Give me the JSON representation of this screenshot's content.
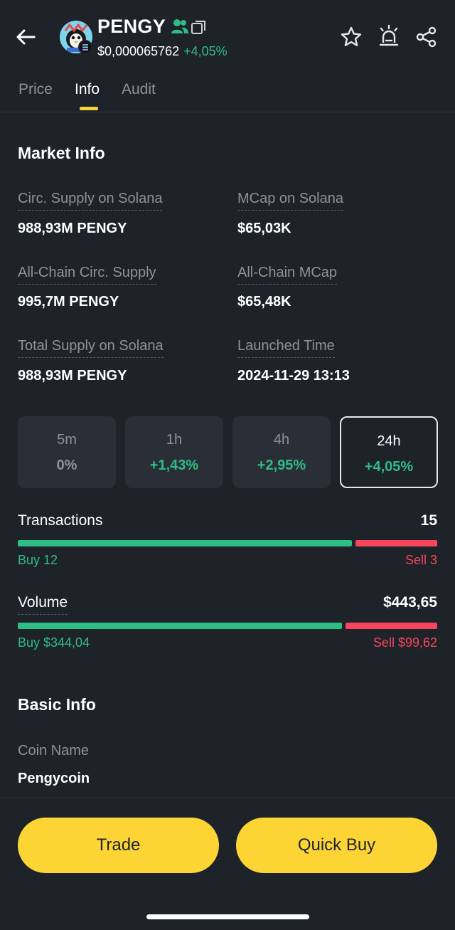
{
  "header": {
    "token_name": "PENGY",
    "price": "$0,000065762",
    "price_change": "+4,05%"
  },
  "tabs": [
    {
      "label": "Price"
    },
    {
      "label": "Info"
    },
    {
      "label": "Audit"
    }
  ],
  "market_info": {
    "title": "Market Info",
    "items": [
      {
        "label": "Circ. Supply on Solana",
        "value": "988,93M PENGY"
      },
      {
        "label": "MCap on Solana",
        "value": "$65,03K"
      },
      {
        "label": "All-Chain Circ. Supply",
        "value": "995,7M PENGY"
      },
      {
        "label": "All-Chain MCap",
        "value": "$65,48K"
      },
      {
        "label": "Total Supply on Solana",
        "value": "988,93M PENGY"
      },
      {
        "label": "Launched Time",
        "value": "2024-11-29 13:13"
      }
    ]
  },
  "timeframes": [
    {
      "label": "5m",
      "value": "0%"
    },
    {
      "label": "1h",
      "value": "+1,43%"
    },
    {
      "label": "4h",
      "value": "+2,95%"
    },
    {
      "label": "24h",
      "value": "+4,05%"
    }
  ],
  "transactions": {
    "title": "Transactions",
    "total": "15",
    "buy": "Buy 12",
    "sell": "Sell 3",
    "buy_fraction": 0.8
  },
  "volume": {
    "title": "Volume",
    "total": "$443,65",
    "buy": "Buy $344,04",
    "sell": "Sell $99,62",
    "buy_fraction": 0.7755
  },
  "basic_info": {
    "title": "Basic Info",
    "coin_name_label": "Coin Name",
    "coin_name": "Pengycoin"
  },
  "actions": {
    "trade": "Trade",
    "quick_buy": "Quick Buy"
  },
  "colors": {
    "background": "#1e2229",
    "positive": "#2ebd85",
    "negative": "#f6465d",
    "accent": "#fcd535",
    "muted": "#8e929a"
  }
}
